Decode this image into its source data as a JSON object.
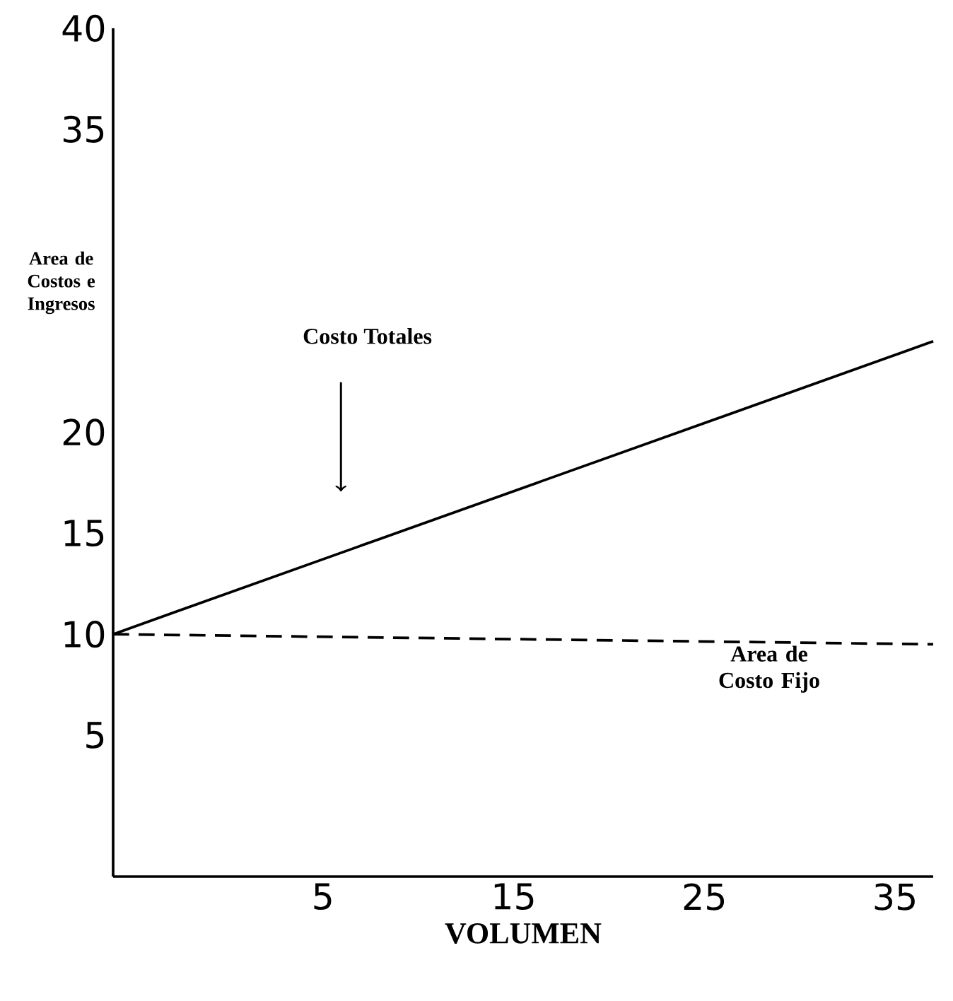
{
  "chart_data": {
    "type": "line",
    "xlabel": "VOLUMEN",
    "ylabel": "Area de Costos e Ingresos",
    "xlim": [
      -6,
      37
    ],
    "ylim": [
      -2,
      40
    ],
    "xticks": [
      5,
      15,
      25,
      35
    ],
    "yticks": [
      5,
      10,
      15,
      20,
      35,
      40
    ],
    "x": [
      -6,
      37
    ],
    "series": [
      {
        "color": "#000000",
        "line_style": "solid",
        "values": [
          10,
          24.5
        ]
      },
      {
        "color": "#000000",
        "line_style": "dashed",
        "values": [
          10,
          9.5
        ]
      }
    ],
    "annotations": [
      "Costo Totales",
      "Area de Costo Fijo"
    ],
    "grid": false,
    "marker": "none"
  }
}
